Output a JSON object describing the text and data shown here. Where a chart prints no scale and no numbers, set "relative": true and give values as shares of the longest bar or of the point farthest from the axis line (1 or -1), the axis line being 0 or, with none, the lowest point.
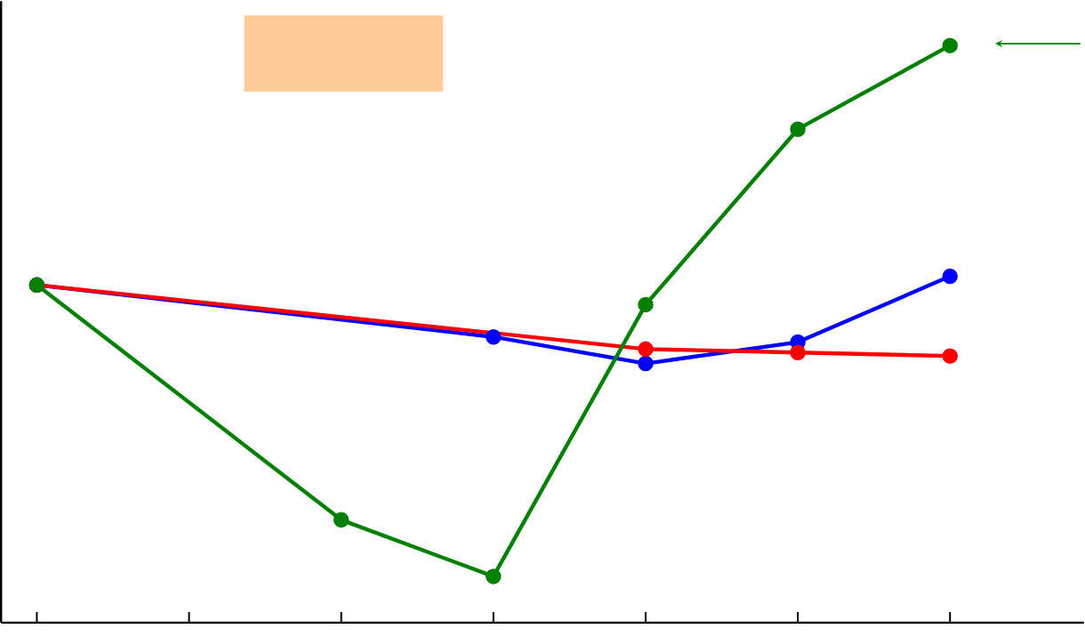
{
  "chart_data": {
    "type": "line",
    "relative": true,
    "marker": "circle",
    "line_style": "solid",
    "categories": [
      null,
      null,
      null,
      null,
      null,
      null,
      null
    ],
    "series": [
      {
        "color": "#0000ff",
        "values": [
          0.585,
          null,
          null,
          0.495,
          0.449,
          0.486,
          0.6
        ]
      },
      {
        "color": "#ff0000",
        "values": [
          0.585,
          null,
          null,
          null,
          0.474,
          0.468,
          0.462
        ]
      },
      {
        "color": "#008000",
        "values": [
          0.585,
          null,
          0.178,
          0.08,
          0.551,
          0.855,
          1
        ]
      }
    ]
  }
}
